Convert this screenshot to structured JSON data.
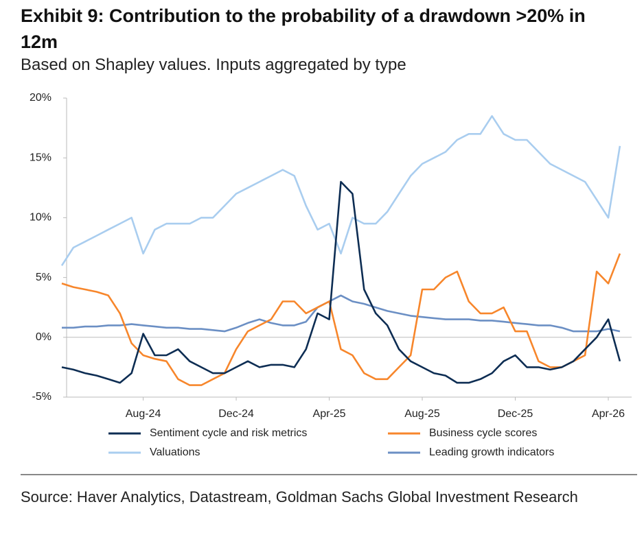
{
  "header": {
    "title": "Exhibit 9: Contribution to the probability of a drawdown >20% in 12m",
    "subtitle": "Based on Shapley values. Inputs aggregated by type"
  },
  "chart_data": {
    "type": "line",
    "categories": [
      null,
      null,
      null,
      null,
      null,
      null,
      null,
      "Aug-24",
      null,
      null,
      null,
      null,
      null,
      null,
      null,
      "Dec-24",
      null,
      null,
      null,
      null,
      null,
      null,
      null,
      "Apr-25",
      null,
      null,
      null,
      null,
      null,
      null,
      null,
      "Aug-25",
      null,
      null,
      null,
      null,
      null,
      null,
      null,
      "Dec-25",
      null,
      null,
      null,
      null,
      null,
      null,
      null,
      "Apr-26",
      null
    ],
    "series": [
      {
        "name": "Sentiment cycle and risk metrics",
        "color": "#0d2d53",
        "values": [
          -2.5,
          -2.7,
          -3,
          -3.2,
          -3.5,
          -3.8,
          -3,
          0.3,
          -1.5,
          -1.5,
          -1,
          -2,
          -2.5,
          -3,
          -3,
          -2.5,
          -2,
          -2.5,
          -2.3,
          -2.3,
          -2.5,
          -1,
          2,
          1.5,
          13,
          12,
          4,
          2,
          1,
          -1,
          -2,
          -2.5,
          -3,
          -3.2,
          -3.8,
          -3.8,
          -3.5,
          -3,
          -2,
          -1.5,
          -2.5,
          -2.5,
          -2.7,
          -2.5,
          -2,
          -1,
          0,
          1.5,
          -2
        ]
      },
      {
        "name": "Business cycle scores",
        "color": "#f7862b",
        "values": [
          4.5,
          4.2,
          4,
          3.8,
          3.5,
          2,
          -0.5,
          -1.5,
          -1.8,
          -2,
          -3.5,
          -4,
          -4,
          -3.5,
          -3,
          -1,
          0.5,
          1,
          1.5,
          3,
          3,
          2,
          2.5,
          3,
          -1,
          -1.5,
          -3,
          -3.5,
          -3.5,
          -2.5,
          -1.5,
          4,
          4,
          5,
          5.5,
          3,
          2,
          2,
          2.5,
          0.5,
          0.5,
          -2,
          -2.5,
          -2.5,
          -2,
          -1.5,
          5.5,
          4.5,
          7
        ]
      },
      {
        "name": "Valuations",
        "color": "#a9cdef",
        "values": [
          6,
          7.5,
          8,
          8.5,
          9,
          9.5,
          10,
          7,
          9,
          9.5,
          9.5,
          9.5,
          10,
          10,
          11,
          12,
          12.5,
          13,
          13.5,
          14,
          13.5,
          11,
          9,
          9.5,
          7,
          10,
          9.5,
          9.5,
          10.5,
          12,
          13.5,
          14.5,
          15,
          15.5,
          16.5,
          17,
          17,
          18.5,
          17,
          16.5,
          16.5,
          15.5,
          14.5,
          14,
          13.5,
          13,
          11.5,
          10,
          16
        ]
      },
      {
        "name": "Leading growth indicators",
        "color": "#6b8fc4",
        "values": [
          0.8,
          0.8,
          0.9,
          0.9,
          1,
          1,
          1.1,
          1,
          0.9,
          0.8,
          0.8,
          0.7,
          0.7,
          0.6,
          0.5,
          0.8,
          1.2,
          1.5,
          1.2,
          1,
          1,
          1.3,
          2.5,
          3,
          3.5,
          3,
          2.8,
          2.5,
          2.2,
          2,
          1.8,
          1.7,
          1.6,
          1.5,
          1.5,
          1.5,
          1.4,
          1.4,
          1.3,
          1.2,
          1.1,
          1,
          1,
          0.8,
          0.5,
          0.5,
          0.5,
          0.7,
          0.5
        ]
      }
    ],
    "ylim": [
      -5,
      20
    ],
    "yticks": [
      {
        "value": -5,
        "label": "-5%"
      },
      {
        "value": 0,
        "label": "0%"
      },
      {
        "value": 5,
        "label": "5%"
      },
      {
        "value": 10,
        "label": "10%"
      },
      {
        "value": 15,
        "label": "15%"
      },
      {
        "value": 20,
        "label": "20%"
      }
    ],
    "zero_line": true
  },
  "footer": {
    "source": "Source: Haver Analytics, Datastream, Goldman Sachs Global Investment Research"
  }
}
